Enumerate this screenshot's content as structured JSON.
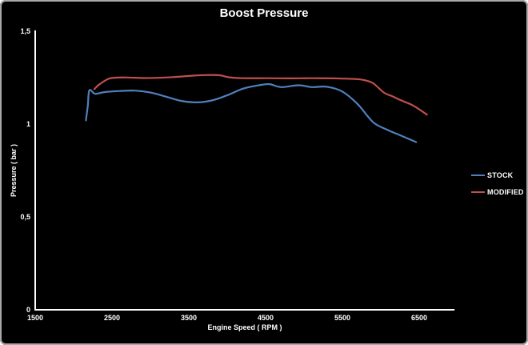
{
  "chart": {
    "title": "Boost Pressure",
    "background_color": "#000000",
    "frame_border_color": "#a8a8a8",
    "axis_color": "#ffffff",
    "text_color": "#ffffff"
  },
  "chart_data": {
    "type": "line",
    "title": "Boost Pressure",
    "xlabel": "Engine Speed ( RPM )",
    "ylabel": "Pressure ( bar )",
    "xlim": [
      1500,
      6960
    ],
    "ylim": [
      0,
      1.5
    ],
    "grid": false,
    "legend_position": "right",
    "x_ticks": [
      {
        "value": 1500,
        "label": "1500"
      },
      {
        "value": 2500,
        "label": "2500"
      },
      {
        "value": 3500,
        "label": "3500"
      },
      {
        "value": 4500,
        "label": "4500"
      },
      {
        "value": 5500,
        "label": "5500"
      },
      {
        "value": 6500,
        "label": "6500"
      }
    ],
    "y_ticks": [
      {
        "value": 0,
        "label": "0"
      },
      {
        "value": 0.5,
        "label": "0,5"
      },
      {
        "value": 1,
        "label": "1"
      },
      {
        "value": 1.5,
        "label": "1,5"
      }
    ],
    "series": [
      {
        "name": "STOCK",
        "color": "#4f81bd",
        "points": [
          [
            2160,
            1.02
          ],
          [
            2185,
            1.1
          ],
          [
            2205,
            1.182
          ],
          [
            2280,
            1.163
          ],
          [
            2400,
            1.172
          ],
          [
            2600,
            1.178
          ],
          [
            2800,
            1.18
          ],
          [
            3000,
            1.17
          ],
          [
            3200,
            1.148
          ],
          [
            3400,
            1.125
          ],
          [
            3600,
            1.117
          ],
          [
            3800,
            1.127
          ],
          [
            4000,
            1.155
          ],
          [
            4200,
            1.19
          ],
          [
            4400,
            1.208
          ],
          [
            4550,
            1.215
          ],
          [
            4700,
            1.199
          ],
          [
            4930,
            1.209
          ],
          [
            5100,
            1.199
          ],
          [
            5300,
            1.201
          ],
          [
            5500,
            1.175
          ],
          [
            5700,
            1.107
          ],
          [
            5900,
            1.01
          ],
          [
            6080,
            0.97
          ],
          [
            6250,
            0.94
          ],
          [
            6460,
            0.903
          ]
        ]
      },
      {
        "name": "MODIFIED",
        "color": "#c0504d",
        "points": [
          [
            2270,
            1.188
          ],
          [
            2330,
            1.212
          ],
          [
            2450,
            1.243
          ],
          [
            2550,
            1.25
          ],
          [
            2700,
            1.251
          ],
          [
            2900,
            1.248
          ],
          [
            3100,
            1.249
          ],
          [
            3300,
            1.253
          ],
          [
            3500,
            1.259
          ],
          [
            3700,
            1.264
          ],
          [
            3900,
            1.263
          ],
          [
            4020,
            1.252
          ],
          [
            4200,
            1.247
          ],
          [
            4500,
            1.247
          ],
          [
            4800,
            1.246
          ],
          [
            5100,
            1.247
          ],
          [
            5400,
            1.246
          ],
          [
            5650,
            1.243
          ],
          [
            5780,
            1.237
          ],
          [
            5900,
            1.22
          ],
          [
            6040,
            1.17
          ],
          [
            6150,
            1.15
          ],
          [
            6250,
            1.13
          ],
          [
            6380,
            1.108
          ],
          [
            6460,
            1.09
          ],
          [
            6600,
            1.051
          ]
        ]
      }
    ]
  }
}
